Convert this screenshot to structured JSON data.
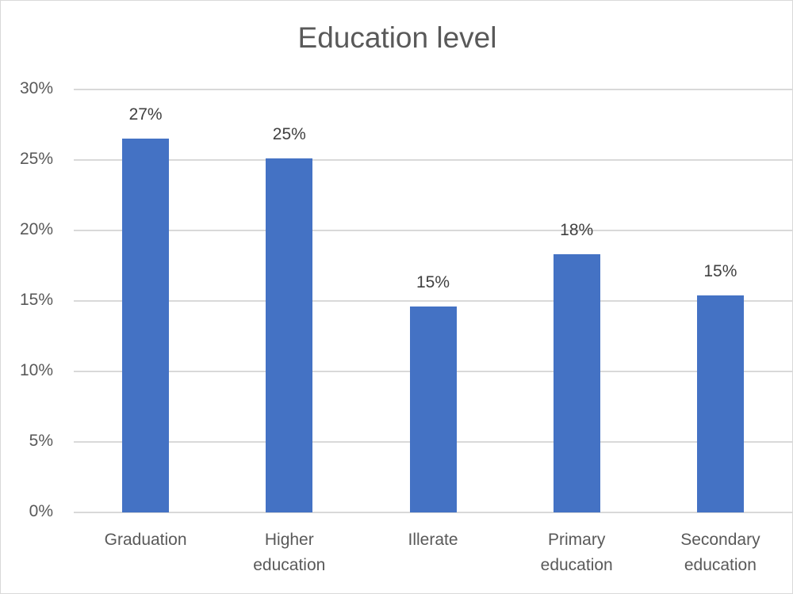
{
  "chart_data": {
    "type": "bar",
    "title": "Education level",
    "categories": [
      "Graduation",
      "Higher education",
      "Illerate",
      "Primary education",
      "Secondary education"
    ],
    "category_lines": [
      [
        "Graduation"
      ],
      [
        "Higher",
        "education"
      ],
      [
        "Illerate"
      ],
      [
        "Primary",
        "education"
      ],
      [
        "Secondary",
        "education"
      ]
    ],
    "values": [
      26.5,
      25.1,
      14.6,
      18.3,
      15.4
    ],
    "data_labels": [
      "27%",
      "25%",
      "15%",
      "18%",
      "15%"
    ],
    "xlabel": "",
    "ylabel": "",
    "ylim": [
      0,
      30
    ],
    "yticks": [
      "0%",
      "5%",
      "10%",
      "15%",
      "20%",
      "25%",
      "30%"
    ],
    "grid": true,
    "legend": null,
    "bar_color": "#4472c4"
  }
}
